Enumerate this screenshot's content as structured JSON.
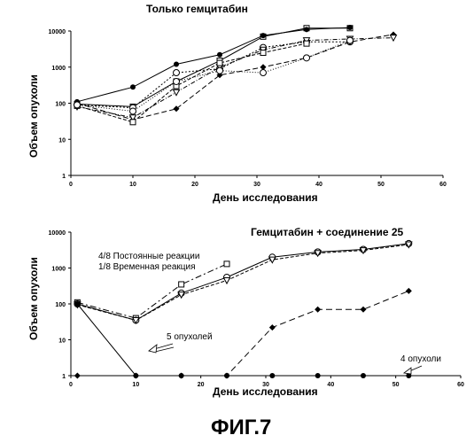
{
  "figure_label": "ФИГ.7",
  "chart_data": [
    {
      "type": "line",
      "title": "Только гемцитабин",
      "xlabel": "День исследования",
      "ylabel": "Объем опухоли",
      "y_scale": "log",
      "xlim": [
        0,
        60
      ],
      "ylim": [
        1,
        10000
      ],
      "x_ticks": [
        "0",
        "10",
        "20",
        "30",
        "40",
        "50",
        "60"
      ],
      "y_ticks": [
        "1",
        "10",
        "100",
        "1000",
        "10000"
      ],
      "grid": false,
      "series": [
        {
          "marker": "square",
          "dash": "",
          "points": [
            [
              1,
              95
            ],
            [
              10,
              80
            ],
            [
              17,
              400
            ],
            [
              24,
              1500
            ],
            [
              31,
              7000
            ],
            [
              38,
              12000
            ],
            [
              45,
              12000
            ]
          ]
        },
        {
          "marker": "filled-circle",
          "dash": "",
          "points": [
            [
              1,
              110
            ],
            [
              10,
              280
            ],
            [
              17,
              1200
            ],
            [
              24,
              2200
            ],
            [
              31,
              7500
            ],
            [
              38,
              11000
            ],
            [
              45,
              12500
            ]
          ]
        },
        {
          "marker": "open-circle",
          "dash": "2,2",
          "points": [
            [
              1,
              90
            ],
            [
              10,
              75
            ],
            [
              17,
              700
            ],
            [
              24,
              900
            ],
            [
              31,
              3500
            ],
            [
              38,
              5000
            ],
            [
              45,
              5000
            ]
          ]
        },
        {
          "marker": "diamond",
          "dash": "6,3",
          "points": [
            [
              1,
              100
            ],
            [
              10,
              35
            ],
            [
              17,
              70
            ],
            [
              24,
              600
            ],
            [
              31,
              1000
            ],
            [
              38,
              1800
            ],
            [
              45,
              5000
            ],
            [
              52,
              8000
            ]
          ]
        },
        {
          "marker": "triangle",
          "dash": "5,2,1,2",
          "points": [
            [
              1,
              80
            ],
            [
              10,
              40
            ],
            [
              17,
              200
            ],
            [
              24,
              1000
            ],
            [
              31,
              3000
            ],
            [
              38,
              5500
            ],
            [
              45,
              6000
            ],
            [
              52,
              6500
            ]
          ]
        },
        {
          "marker": "square",
          "dash": "4,2",
          "points": [
            [
              1,
              85
            ],
            [
              10,
              30
            ],
            [
              17,
              300
            ],
            [
              24,
              1300
            ],
            [
              31,
              2500
            ],
            [
              38,
              4500
            ]
          ]
        },
        {
          "marker": "open-circle",
          "dash": "1,2",
          "points": [
            [
              1,
              90
            ],
            [
              10,
              60
            ],
            [
              17,
              400
            ],
            [
              24,
              800
            ],
            [
              31,
              700
            ],
            [
              38,
              1800
            ],
            [
              45,
              5500
            ]
          ]
        }
      ]
    },
    {
      "type": "line",
      "title": "Гемцитабин + соединение 25",
      "xlabel": "День исследования",
      "ylabel": "Объем опухоли",
      "y_scale": "log",
      "xlim": [
        0,
        60
      ],
      "ylim": [
        1,
        10000
      ],
      "x_ticks": [
        "0",
        "10",
        "20",
        "30",
        "40",
        "50",
        "60"
      ],
      "y_ticks": [
        "1",
        "10",
        "100",
        "1000",
        "10000"
      ],
      "grid": false,
      "annotations": {
        "durable": "4/8 Постоянные реакции",
        "transient": "1/8 Временная реакция",
        "five_tumors": "5 опухолей",
        "four_tumors": "4 опухоли"
      },
      "series": [
        {
          "marker": "square",
          "dash": "7,3,2,3",
          "points": [
            [
              1,
              110
            ],
            [
              10,
              40
            ],
            [
              17,
              350
            ],
            [
              24,
              1300
            ]
          ]
        },
        {
          "marker": "open-circle",
          "dash": "",
          "points": [
            [
              1,
              100
            ],
            [
              10,
              35
            ],
            [
              17,
              200
            ],
            [
              24,
              550
            ],
            [
              31,
              2000
            ],
            [
              38,
              2800
            ],
            [
              45,
              3300
            ],
            [
              52,
              4800
            ]
          ]
        },
        {
          "marker": "triangle",
          "dash": "4,2",
          "points": [
            [
              1,
              95
            ],
            [
              10,
              35
            ],
            [
              17,
              180
            ],
            [
              24,
              450
            ],
            [
              31,
              1700
            ],
            [
              38,
              2600
            ],
            [
              45,
              3100
            ],
            [
              52,
              4500
            ]
          ]
        },
        {
          "marker": "diamond",
          "dash": "7,4",
          "points": [
            [
              1,
              1
            ],
            [
              10,
              1
            ],
            [
              17,
              1
            ],
            [
              24,
              1
            ],
            [
              31,
              22
            ],
            [
              38,
              70
            ],
            [
              45,
              70
            ],
            [
              52,
              230
            ]
          ]
        },
        {
          "marker": "filled-circle",
          "dash": "",
          "points": [
            [
              1,
              100
            ],
            [
              10,
              1
            ],
            [
              17,
              1
            ],
            [
              24,
              1
            ],
            [
              31,
              1
            ],
            [
              38,
              1
            ],
            [
              45,
              1
            ],
            [
              52,
              1
            ]
          ]
        }
      ]
    }
  ]
}
